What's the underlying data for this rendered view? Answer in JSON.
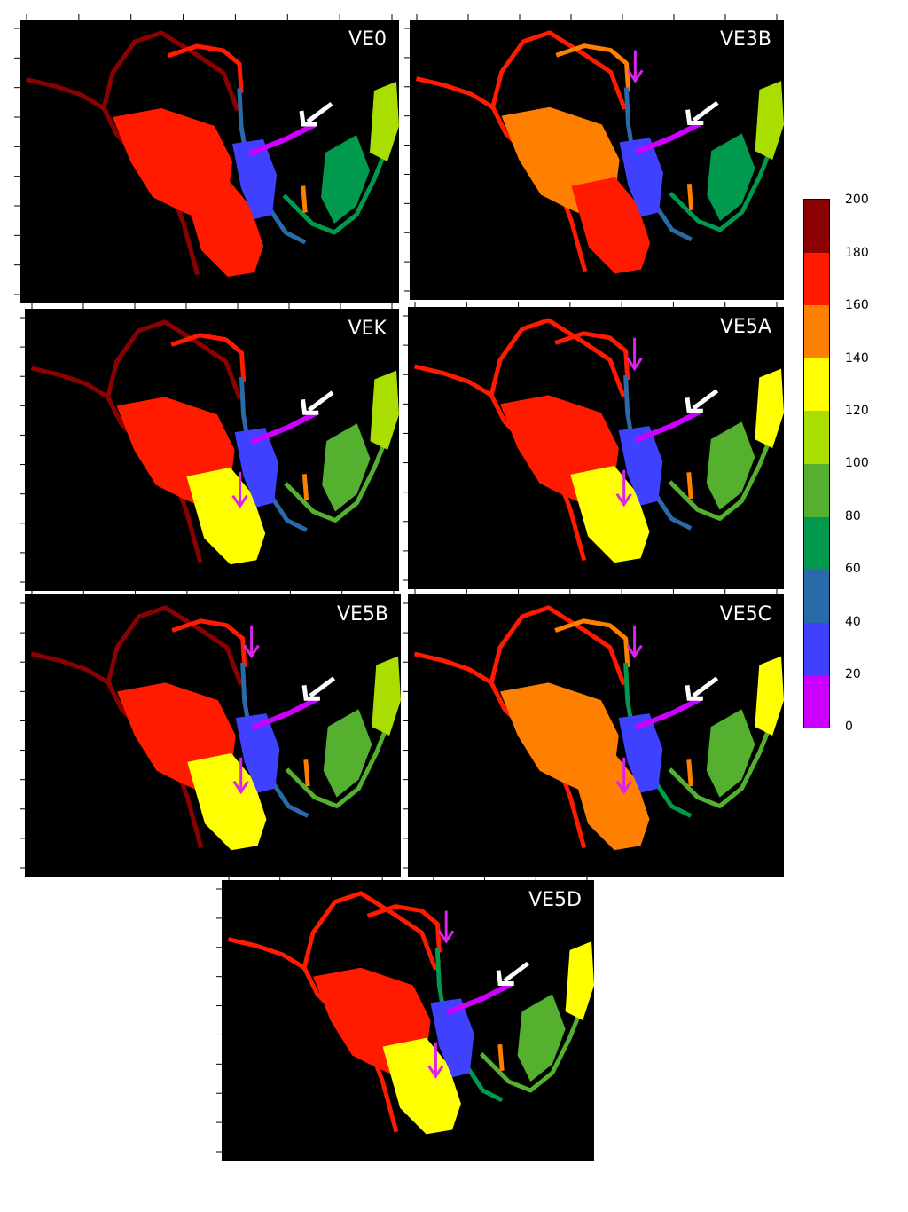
{
  "panels": [
    {
      "label": "VE0",
      "has_pink_top": false,
      "has_pink_bottom": false
    },
    {
      "label": "VE3B",
      "has_pink_top": true,
      "has_pink_bottom": false
    },
    {
      "label": "VEK",
      "has_pink_top": false,
      "has_pink_bottom": true
    },
    {
      "label": "VE5A",
      "has_pink_top": true,
      "has_pink_bottom": true
    },
    {
      "label": "VE5B",
      "has_pink_top": true,
      "has_pink_bottom": true
    },
    {
      "label": "VE5C",
      "has_pink_top": true,
      "has_pink_bottom": true
    },
    {
      "label": "VE5D",
      "has_pink_top": true,
      "has_pink_bottom": true
    }
  ],
  "colorbar": {
    "ticks": [
      "200",
      "180",
      "160",
      "140",
      "120",
      "100",
      "80",
      "60",
      "40",
      "20",
      "0"
    ],
    "colors": [
      "#8b0000",
      "#ff1a00",
      "#ff7f00",
      "#ffff00",
      "#aadd00",
      "#55b030",
      "#00994d",
      "#2a6aa8",
      "#4040ff",
      "#cc00ff"
    ]
  },
  "arrow_colors": {
    "white": "#ffffff",
    "magenta": "#dd22ee"
  }
}
